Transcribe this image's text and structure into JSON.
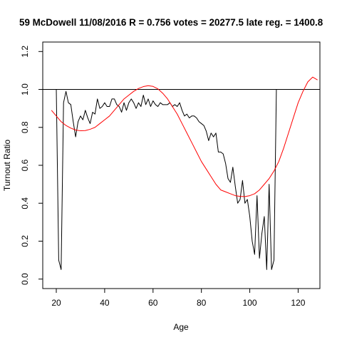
{
  "chart_data": {
    "type": "line",
    "title": "59 McDowell 11/08/2016 R = 0.756 votes = 20277.5 late reg. = 1400.8",
    "xlabel": "Age",
    "ylabel": "Turnout Ratio",
    "xlim": [
      14.4,
      129.0
    ],
    "ylim": [
      -0.05,
      1.25
    ],
    "xticks": [
      20,
      40,
      60,
      80,
      100,
      120
    ],
    "yticks": [
      0.0,
      0.2,
      0.4,
      0.6,
      0.8,
      1.0,
      1.2
    ],
    "xtick_labels": [
      "20",
      "40",
      "60",
      "80",
      "100",
      "120"
    ],
    "ytick_labels": [
      "0.0",
      "0.2",
      "0.4",
      "0.6",
      "0.8",
      "1.0",
      "1.2"
    ],
    "reference_line": {
      "y": 1.0,
      "color": "#000000"
    },
    "grid": false,
    "series": [
      {
        "color": "#000000",
        "x": [
          20,
          21,
          22,
          23,
          24,
          25,
          26,
          27,
          28,
          29,
          30,
          31,
          32,
          33,
          34,
          35,
          36,
          37,
          38,
          39,
          40,
          41,
          42,
          43,
          44,
          45,
          46,
          47,
          48,
          49,
          50,
          51,
          52,
          53,
          54,
          55,
          56,
          57,
          58,
          59,
          60,
          61,
          62,
          63,
          64,
          65,
          66,
          67,
          68,
          69,
          70,
          71,
          72,
          73,
          74,
          75,
          76,
          77,
          78,
          79,
          80,
          81,
          82,
          83,
          84,
          85,
          86,
          87,
          88,
          89,
          90,
          91,
          92,
          93,
          94,
          95,
          96,
          97,
          98,
          99,
          100,
          101,
          102,
          103,
          104,
          105,
          106,
          107,
          108,
          109,
          110,
          111
        ],
        "y": [
          1.0,
          0.1,
          0.05,
          0.93,
          0.99,
          0.93,
          0.92,
          0.83,
          0.75,
          0.83,
          0.86,
          0.84,
          0.89,
          0.85,
          0.82,
          0.88,
          0.87,
          0.95,
          0.9,
          0.91,
          0.93,
          0.91,
          0.91,
          0.95,
          0.95,
          0.92,
          0.91,
          0.88,
          0.93,
          0.89,
          0.93,
          0.95,
          0.93,
          0.9,
          0.93,
          0.91,
          0.97,
          0.92,
          0.95,
          0.91,
          0.94,
          0.92,
          0.91,
          0.93,
          0.92,
          0.92,
          0.92,
          0.93,
          0.91,
          0.92,
          0.91,
          0.93,
          0.89,
          0.86,
          0.87,
          0.85,
          0.86,
          0.86,
          0.85,
          0.83,
          0.82,
          0.81,
          0.78,
          0.73,
          0.77,
          0.75,
          0.77,
          0.67,
          0.67,
          0.66,
          0.61,
          0.53,
          0.51,
          0.59,
          0.49,
          0.4,
          0.42,
          0.52,
          0.4,
          0.42,
          0.33,
          0.2,
          0.13,
          0.44,
          0.11,
          0.24,
          0.33,
          0.05,
          0.5,
          0.05,
          0.1,
          1.0
        ]
      },
      {
        "color": "#ff0000",
        "x": [
          18,
          20,
          22,
          24,
          26,
          28,
          30,
          32,
          34,
          36,
          38,
          40,
          42,
          44,
          46,
          48,
          50,
          52,
          54,
          56,
          58,
          60,
          62,
          64,
          66,
          68,
          70,
          72,
          74,
          76,
          78,
          80,
          82,
          84,
          86,
          88,
          90,
          92,
          94,
          96,
          98,
          100,
          102,
          104,
          106,
          108,
          110,
          112,
          114,
          116,
          118,
          120,
          122,
          124,
          126,
          128
        ],
        "y": [
          0.89,
          0.86,
          0.83,
          0.81,
          0.796,
          0.786,
          0.782,
          0.783,
          0.79,
          0.8,
          0.82,
          0.84,
          0.86,
          0.89,
          0.92,
          0.95,
          0.97,
          0.99,
          1.005,
          1.015,
          1.02,
          1.016,
          1.003,
          0.98,
          0.95,
          0.91,
          0.87,
          0.82,
          0.77,
          0.72,
          0.67,
          0.62,
          0.58,
          0.54,
          0.5,
          0.47,
          0.46,
          0.45,
          0.44,
          0.436,
          0.435,
          0.44,
          0.45,
          0.47,
          0.5,
          0.53,
          0.57,
          0.62,
          0.69,
          0.77,
          0.85,
          0.93,
          0.99,
          1.04,
          1.065,
          1.05
        ]
      }
    ]
  }
}
